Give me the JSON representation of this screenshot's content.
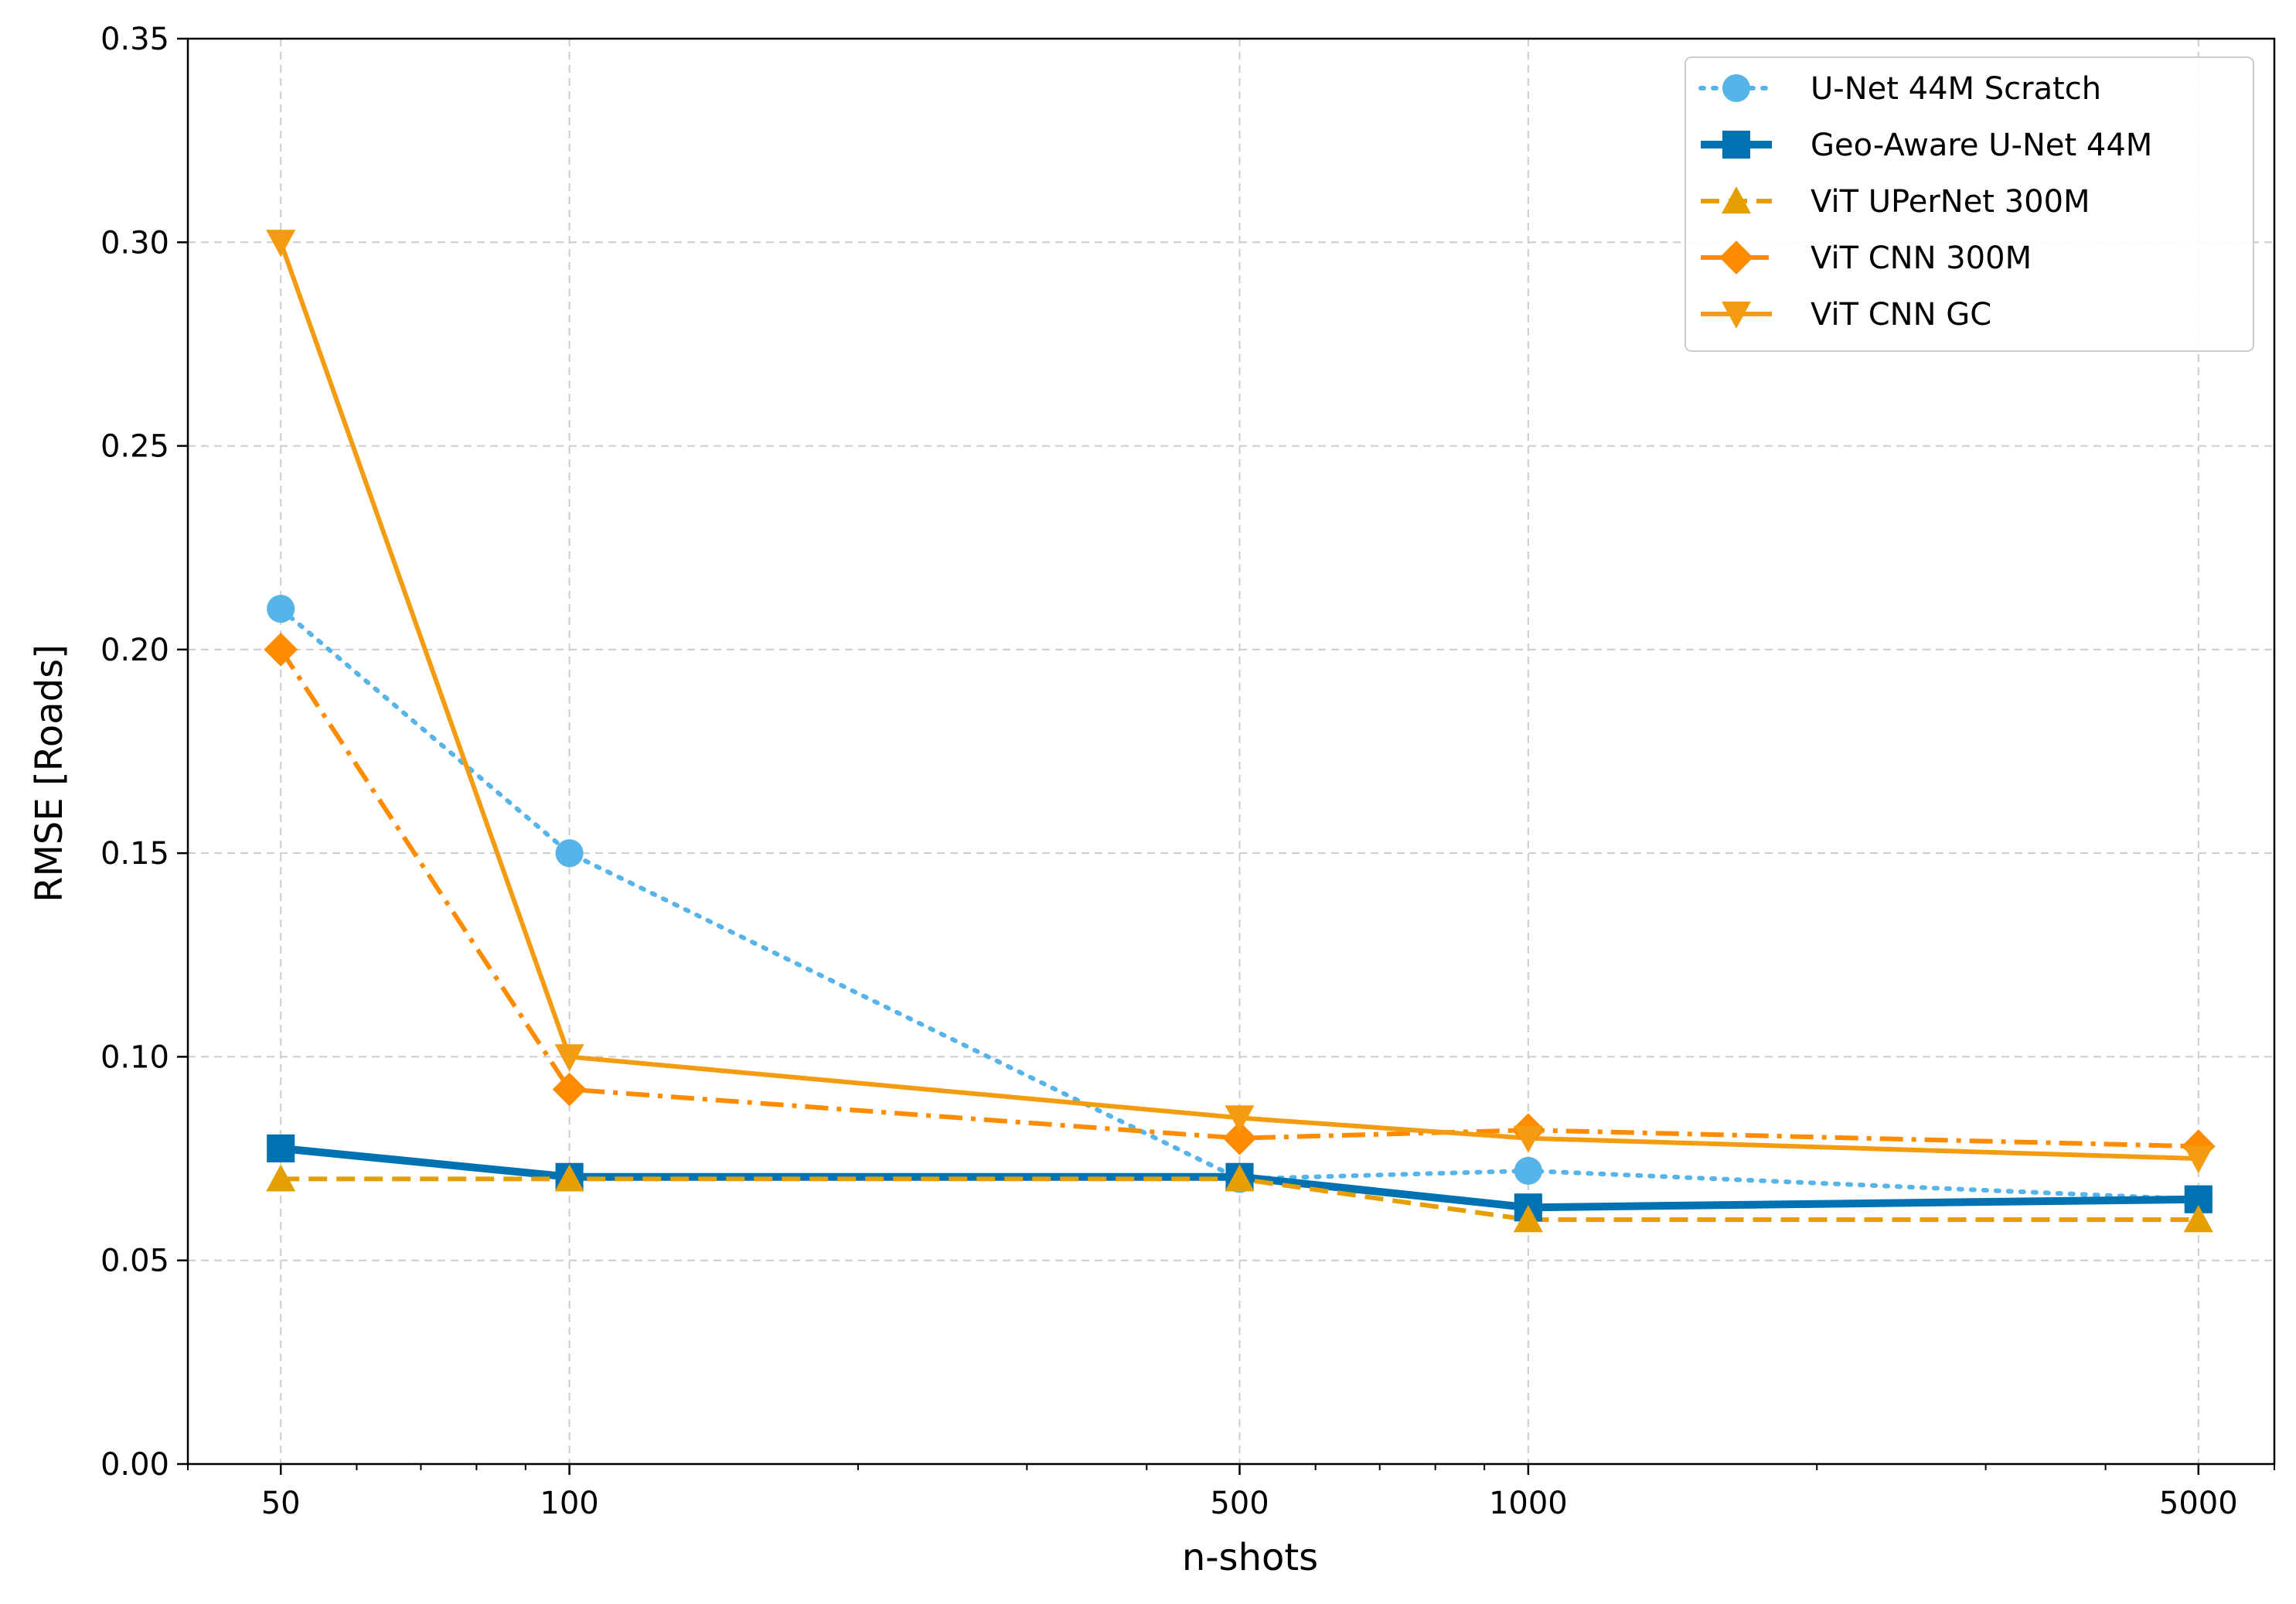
{
  "chart_data": {
    "type": "line",
    "title": "",
    "xlabel": "n-shots",
    "ylabel": "RMSE [Roads]",
    "xscale": "log",
    "xlim": [
      40,
      6000
    ],
    "ylim": [
      0,
      0.35
    ],
    "grid": true,
    "legend_position": "top-right",
    "x": [
      50,
      100,
      500,
      1000,
      5000
    ],
    "x_tick_labels": [
      "50",
      "100",
      "500",
      "1000",
      "5000"
    ],
    "y_ticks": [
      0.0,
      0.05,
      0.1,
      0.15,
      0.2,
      0.25,
      0.3,
      0.35
    ],
    "y_tick_labels": [
      "0.00",
      "0.05",
      "0.10",
      "0.15",
      "0.20",
      "0.25",
      "0.30",
      "0.35"
    ],
    "series": [
      {
        "name": "U-Net 44M Scratch",
        "values": [
          0.21,
          0.15,
          0.07,
          0.072,
          0.065
        ],
        "color": "#56B4E9",
        "dash": "dotted",
        "marker": "circle",
        "width": 6
      },
      {
        "name": "Geo-Aware U-Net 44M",
        "values": [
          0.0775,
          0.0705,
          0.0705,
          0.063,
          0.065
        ],
        "color": "#0072B2",
        "dash": "solid",
        "marker": "square",
        "width": 10
      },
      {
        "name": "ViT UPerNet 300M",
        "values": [
          0.07,
          0.07,
          0.07,
          0.06,
          0.06
        ],
        "color": "#E69F00",
        "dash": "dashed",
        "marker": "triangle-up",
        "width": 6
      },
      {
        "name": "ViT CNN 300M",
        "values": [
          0.2,
          0.092,
          0.08,
          0.082,
          0.078
        ],
        "color": "#FF8C00",
        "dash": "dashdot",
        "marker": "diamond",
        "width": 6
      },
      {
        "name": "ViT CNN GC",
        "values": [
          0.3,
          0.1,
          0.085,
          0.08,
          0.075
        ],
        "color": "#F39C12",
        "dash": "solid",
        "marker": "triangle-down",
        "width": 6
      }
    ]
  }
}
